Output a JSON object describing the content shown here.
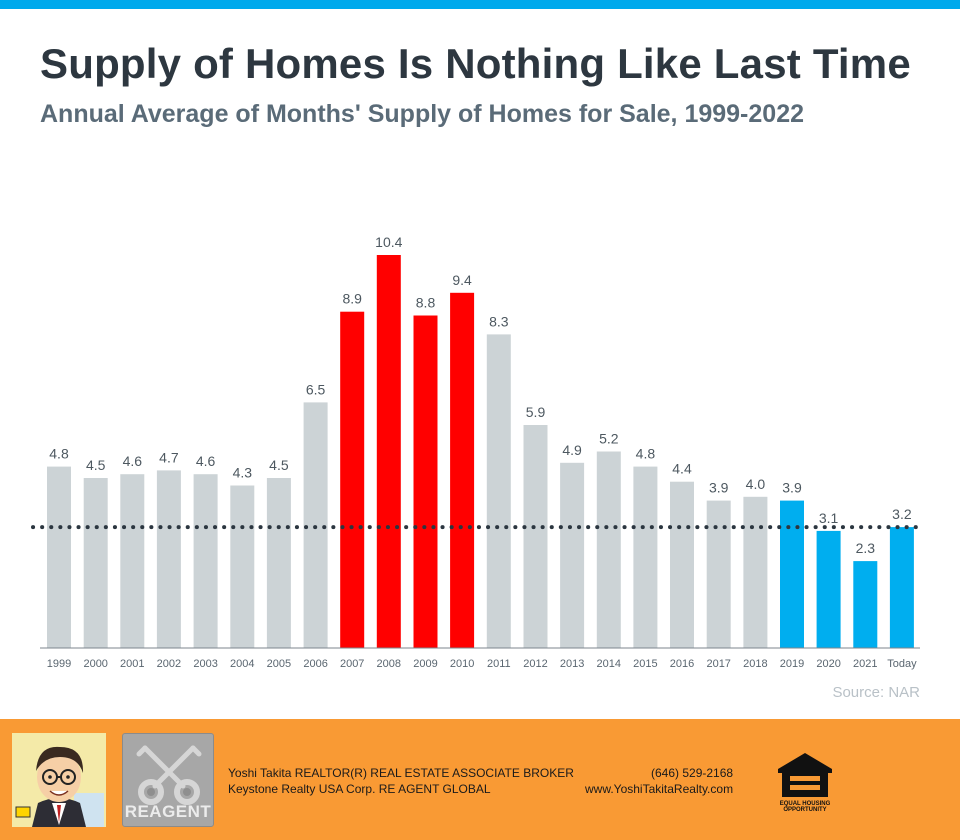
{
  "title": "Supply of Homes Is Nothing Like Last Time",
  "subtitle": "Annual Average of Months' Supply of Homes for Sale, 1999-2022",
  "source": "Source: NAR",
  "colors": {
    "stripe": "#00a9ec",
    "gray_bar": "#ccd3d6",
    "red_bar": "#ff0000",
    "blue_bar": "#00aeef",
    "footer": "#f99a34",
    "dotted_line": "#2b3640"
  },
  "chart_data": {
    "type": "bar",
    "title": "Supply of Homes Is Nothing Like Last Time",
    "subtitle": "Annual Average of Months' Supply of Homes for Sale, 1999-2022",
    "xlabel": "",
    "ylabel": "",
    "ylim": [
      0,
      10.4
    ],
    "grid": false,
    "categories": [
      "1999",
      "2000",
      "2001",
      "2002",
      "2003",
      "2004",
      "2005",
      "2006",
      "2007",
      "2008",
      "2009",
      "2010",
      "2011",
      "2012",
      "2013",
      "2014",
      "2015",
      "2016",
      "2017",
      "2018",
      "2019",
      "2020",
      "2021",
      "Today"
    ],
    "values": [
      4.8,
      4.5,
      4.6,
      4.7,
      4.6,
      4.3,
      4.5,
      6.5,
      8.9,
      10.4,
      8.8,
      9.4,
      8.3,
      5.9,
      4.9,
      5.2,
      4.8,
      4.4,
      3.9,
      4.0,
      3.9,
      3.1,
      2.3,
      3.2
    ],
    "value_labels": [
      "4.8",
      "4.5",
      "4.6",
      "4.7",
      "4.6",
      "4.3",
      "4.5",
      "6.5",
      "8.9",
      "10.4",
      "8.8",
      "9.4",
      "8.3",
      "5.9",
      "4.9",
      "5.2",
      "4.8",
      "4.4",
      "3.9",
      "4.0",
      "3.9",
      "3.1",
      "2.3",
      "3.2"
    ],
    "bar_color_groups": [
      "gray",
      "gray",
      "gray",
      "gray",
      "gray",
      "gray",
      "gray",
      "gray",
      "red",
      "red",
      "red",
      "red",
      "gray",
      "gray",
      "gray",
      "gray",
      "gray",
      "gray",
      "gray",
      "gray",
      "blue",
      "blue",
      "blue",
      "blue"
    ],
    "reference_line": {
      "value": 3.2,
      "style": "dotted"
    }
  },
  "footer": {
    "agent_line": "Yoshi Takita REALTOR(R) REAL ESTATE ASSOCIATE BROKER",
    "company_line": "Keystone Realty USA Corp.  RE AGENT GLOBAL",
    "phone": "(646) 529-2168",
    "website": "www.YoshiTakitaRealty.com",
    "logo_text": "REAGENT",
    "eho_text_1": "EQUAL HOUSING",
    "eho_text_2": "OPPORTUNITY"
  }
}
